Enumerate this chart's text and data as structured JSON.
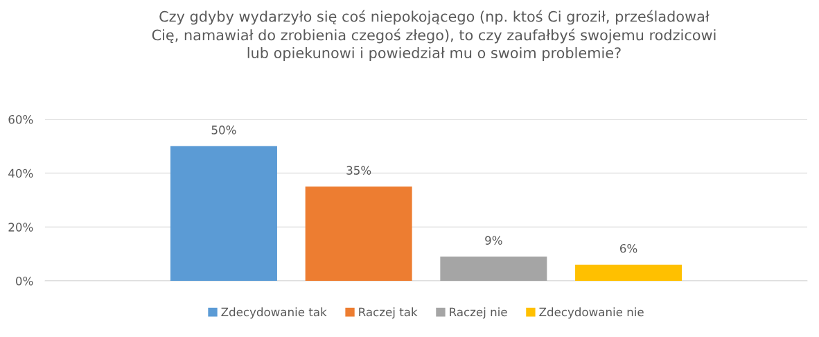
{
  "chart_data": {
    "type": "bar",
    "title": "Czy gdyby wydarzyło się coś niepokojącego (np. ktoś Ci groził, prześladował\nCię, namawiał do zrobienia czegoś złego), to czy zaufałbyś swojemu rodzicowi\nlub opiekunowi i powiedział mu o swoim problemie?",
    "categories": [
      null
    ],
    "series": [
      {
        "name": "Zdecydowanie tak",
        "color": "#5b9bd5",
        "values": [
          50
        ],
        "value_labels": [
          "50%"
        ]
      },
      {
        "name": "Raczej tak",
        "color": "#ed7d31",
        "values": [
          35
        ],
        "value_labels": [
          "35%"
        ]
      },
      {
        "name": "Raczej nie",
        "color": "#a5a5a5",
        "values": [
          9
        ],
        "value_labels": [
          "9%"
        ]
      },
      {
        "name": "Zdecydowanie nie",
        "color": "#ffc000",
        "values": [
          6
        ],
        "value_labels": [
          "6%"
        ]
      }
    ],
    "ylim": [
      0,
      60
    ],
    "yticks": [
      {
        "value": 0,
        "label": "0%"
      },
      {
        "value": 20,
        "label": "20%"
      },
      {
        "value": 40,
        "label": "40%"
      },
      {
        "value": 60,
        "label": "60%"
      }
    ],
    "grid": "y",
    "legend": "bottom"
  }
}
